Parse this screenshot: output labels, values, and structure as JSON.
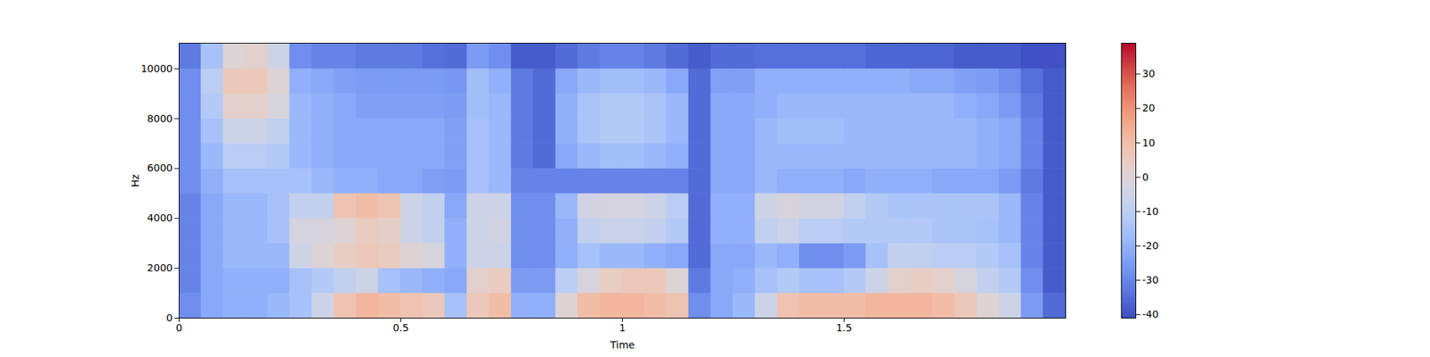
{
  "chart_data": {
    "type": "heatmap",
    "x_label": "Time",
    "y_label": "Hz",
    "xlim": [
      0,
      2
    ],
    "xticks": [
      0,
      0.5,
      1,
      1.5
    ],
    "ylim": [
      0,
      11025
    ],
    "yticks": [
      0,
      2000,
      4000,
      6000,
      8000,
      10000
    ],
    "cells": {
      "x_bins": [
        0,
        0.05,
        0.1,
        0.15,
        0.2,
        0.25,
        0.3,
        0.35,
        0.4,
        0.45,
        0.5,
        0.55,
        0.6,
        0.65,
        0.7,
        0.75,
        0.8,
        0.85,
        0.9,
        0.95,
        1,
        1.05,
        1.1,
        1.15,
        1.2,
        1.25,
        1.3,
        1.35,
        1.4,
        1.45,
        1.5,
        1.55,
        1.6,
        1.65,
        1.7,
        1.75,
        1.8,
        1.85,
        1.9,
        1.95,
        2
      ],
      "y_bins": [
        0,
        1000,
        2000,
        3000,
        4000,
        5000,
        6000,
        7000,
        8000,
        9000,
        10000,
        11025
      ],
      "values": [
        [
          -28,
          -22,
          -20,
          -20,
          -18,
          -15,
          -5,
          8,
          12,
          10,
          8,
          6,
          -15,
          6,
          10,
          -20,
          -20,
          0,
          10,
          12,
          12,
          10,
          8,
          -28,
          -22,
          -18,
          -5,
          8,
          10,
          10,
          10,
          12,
          12,
          12,
          10,
          6,
          0,
          -5,
          -25,
          -35
        ],
        [
          -30,
          -22,
          -20,
          -20,
          -20,
          -15,
          -12,
          -8,
          -5,
          -15,
          -18,
          -20,
          -22,
          2,
          5,
          -25,
          -25,
          -10,
          -2,
          4,
          6,
          6,
          0,
          -32,
          -22,
          -20,
          -15,
          -12,
          -15,
          -15,
          -12,
          -5,
          2,
          4,
          2,
          -2,
          -8,
          -12,
          -28,
          -38
        ],
        [
          -30,
          -22,
          -18,
          -18,
          -18,
          -5,
          0,
          4,
          6,
          5,
          0,
          -2,
          -20,
          -5,
          -5,
          -28,
          -28,
          -20,
          -15,
          -18,
          -18,
          -20,
          -22,
          -35,
          -22,
          -22,
          -18,
          -20,
          -28,
          -28,
          -25,
          -15,
          -8,
          -8,
          -10,
          -10,
          -12,
          -15,
          -30,
          -38
        ],
        [
          -30,
          -22,
          -18,
          -18,
          -15,
          -3,
          -2,
          0,
          5,
          3,
          -5,
          -8,
          -20,
          -5,
          -4,
          -28,
          -28,
          -20,
          -8,
          -6,
          -6,
          -8,
          -12,
          -35,
          -20,
          -20,
          -8,
          -6,
          -10,
          -10,
          -12,
          -12,
          -12,
          -12,
          -14,
          -14,
          -15,
          -18,
          -30,
          -38
        ],
        [
          -30,
          -22,
          -18,
          -18,
          -15,
          -8,
          -8,
          8,
          10,
          8,
          -5,
          -8,
          -22,
          -5,
          -5,
          -28,
          -28,
          -18,
          -4,
          -3,
          -3,
          -5,
          -10,
          -35,
          -20,
          -20,
          -5,
          -2,
          -4,
          -4,
          -8,
          -12,
          -14,
          -14,
          -14,
          -14,
          -14,
          -18,
          -30,
          -38
        ],
        [
          -28,
          -20,
          -15,
          -15,
          -15,
          -15,
          -18,
          -20,
          -20,
          -22,
          -22,
          -24,
          -25,
          -15,
          -18,
          -30,
          -30,
          -30,
          -30,
          -30,
          -30,
          -30,
          -30,
          -35,
          -22,
          -22,
          -18,
          -20,
          -20,
          -20,
          -22,
          -20,
          -20,
          -20,
          -22,
          -22,
          -22,
          -25,
          -32,
          -38
        ],
        [
          -28,
          -18,
          -10,
          -10,
          -12,
          -18,
          -20,
          -22,
          -22,
          -22,
          -22,
          -22,
          -24,
          -15,
          -18,
          -32,
          -35,
          -22,
          -18,
          -16,
          -16,
          -18,
          -20,
          -35,
          -22,
          -22,
          -18,
          -18,
          -18,
          -18,
          -18,
          -18,
          -18,
          -18,
          -18,
          -18,
          -20,
          -22,
          -30,
          -38
        ],
        [
          -28,
          -15,
          -5,
          -5,
          -8,
          -18,
          -20,
          -22,
          -22,
          -22,
          -22,
          -22,
          -24,
          -15,
          -18,
          -32,
          -35,
          -20,
          -14,
          -12,
          -12,
          -14,
          -18,
          -35,
          -22,
          -22,
          -18,
          -16,
          -16,
          -16,
          -18,
          -18,
          -18,
          -18,
          -18,
          -18,
          -20,
          -22,
          -30,
          -38
        ],
        [
          -28,
          -12,
          2,
          2,
          -2,
          -18,
          -20,
          -22,
          -24,
          -24,
          -24,
          -24,
          -25,
          -16,
          -18,
          -32,
          -35,
          -20,
          -14,
          -12,
          -12,
          -14,
          -18,
          -35,
          -22,
          -22,
          -20,
          -18,
          -18,
          -18,
          -18,
          -18,
          -18,
          -18,
          -18,
          -20,
          -22,
          -25,
          -32,
          -38
        ],
        [
          -28,
          -10,
          6,
          6,
          0,
          -20,
          -22,
          -24,
          -25,
          -25,
          -25,
          -25,
          -26,
          -16,
          -20,
          -32,
          -35,
          -22,
          -18,
          -16,
          -16,
          -18,
          -22,
          -35,
          -24,
          -24,
          -20,
          -20,
          -20,
          -20,
          -20,
          -20,
          -20,
          -22,
          -22,
          -24,
          -25,
          -28,
          -34,
          -38
        ],
        [
          -32,
          -15,
          0,
          2,
          -5,
          -28,
          -30,
          -30,
          -32,
          -32,
          -32,
          -34,
          -35,
          -25,
          -28,
          -38,
          -38,
          -35,
          -32,
          -30,
          -30,
          -32,
          -35,
          -38,
          -35,
          -35,
          -34,
          -34,
          -34,
          -34,
          -34,
          -36,
          -36,
          -36,
          -36,
          -38,
          -38,
          -38,
          -40,
          -40
        ]
      ]
    },
    "colorbar": {
      "lim": [
        -41,
        39
      ],
      "ticks": [
        -40,
        -30,
        -20,
        -10,
        0,
        10,
        20,
        30
      ]
    }
  }
}
